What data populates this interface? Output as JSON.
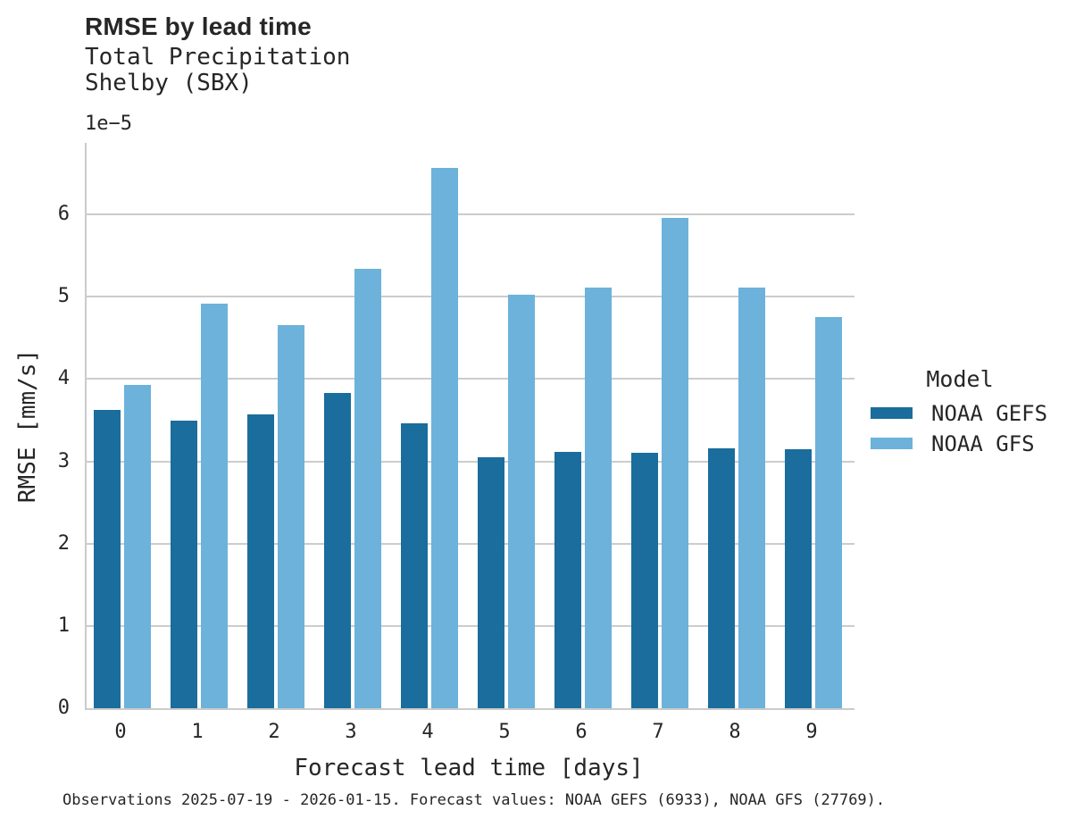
{
  "header": {
    "title": "RMSE by lead time",
    "subtitle": "Total Precipitation\nShelby (SBX)"
  },
  "axes": {
    "offset_label": "1e−5",
    "xlabel": "Forecast lead time [days]",
    "ylabel": "RMSE [mm/s]"
  },
  "legend": {
    "title": "Model",
    "items": [
      {
        "label": "NOAA GEFS",
        "color": "#1a6d9c"
      },
      {
        "label": "NOAA GFS",
        "color": "#6cb2db"
      }
    ]
  },
  "caption": "Observations 2025-07-19 - 2026-01-15. Forecast values: NOAA GEFS (6933), NOAA GFS (27769).",
  "colors": {
    "gefs_bar": "#1a6d9c",
    "gfs_bar": "#6cb2db",
    "gridline": "#cccccc",
    "spine": "#cbcbcb",
    "text": "#262626"
  },
  "chart_data": {
    "type": "bar",
    "title": "RMSE by lead time",
    "subtitle": [
      "Total Precipitation",
      "Shelby (SBX)"
    ],
    "categories": [
      "0",
      "1",
      "2",
      "3",
      "4",
      "5",
      "6",
      "7",
      "8",
      "9"
    ],
    "series": [
      {
        "name": "NOAA GEFS",
        "color": "#1a6d9c",
        "values": [
          3.62,
          3.49,
          3.57,
          3.83,
          3.46,
          3.05,
          3.12,
          3.1,
          3.16,
          3.15
        ]
      },
      {
        "name": "NOAA GFS",
        "color": "#6cb2db",
        "values": [
          3.93,
          4.92,
          4.66,
          5.34,
          6.57,
          5.03,
          5.11,
          5.96,
          5.11,
          4.75
        ]
      }
    ],
    "value_scale": "1e-5",
    "value_units": "mm/s",
    "xlabel": "Forecast lead time [days]",
    "ylabel": "RMSE [mm/s]",
    "ylim": [
      0,
      6.87
    ],
    "yticks": [
      0,
      1,
      2,
      3,
      4,
      5,
      6
    ],
    "grid": true,
    "legend_title": "Model",
    "legend_position": "right"
  }
}
